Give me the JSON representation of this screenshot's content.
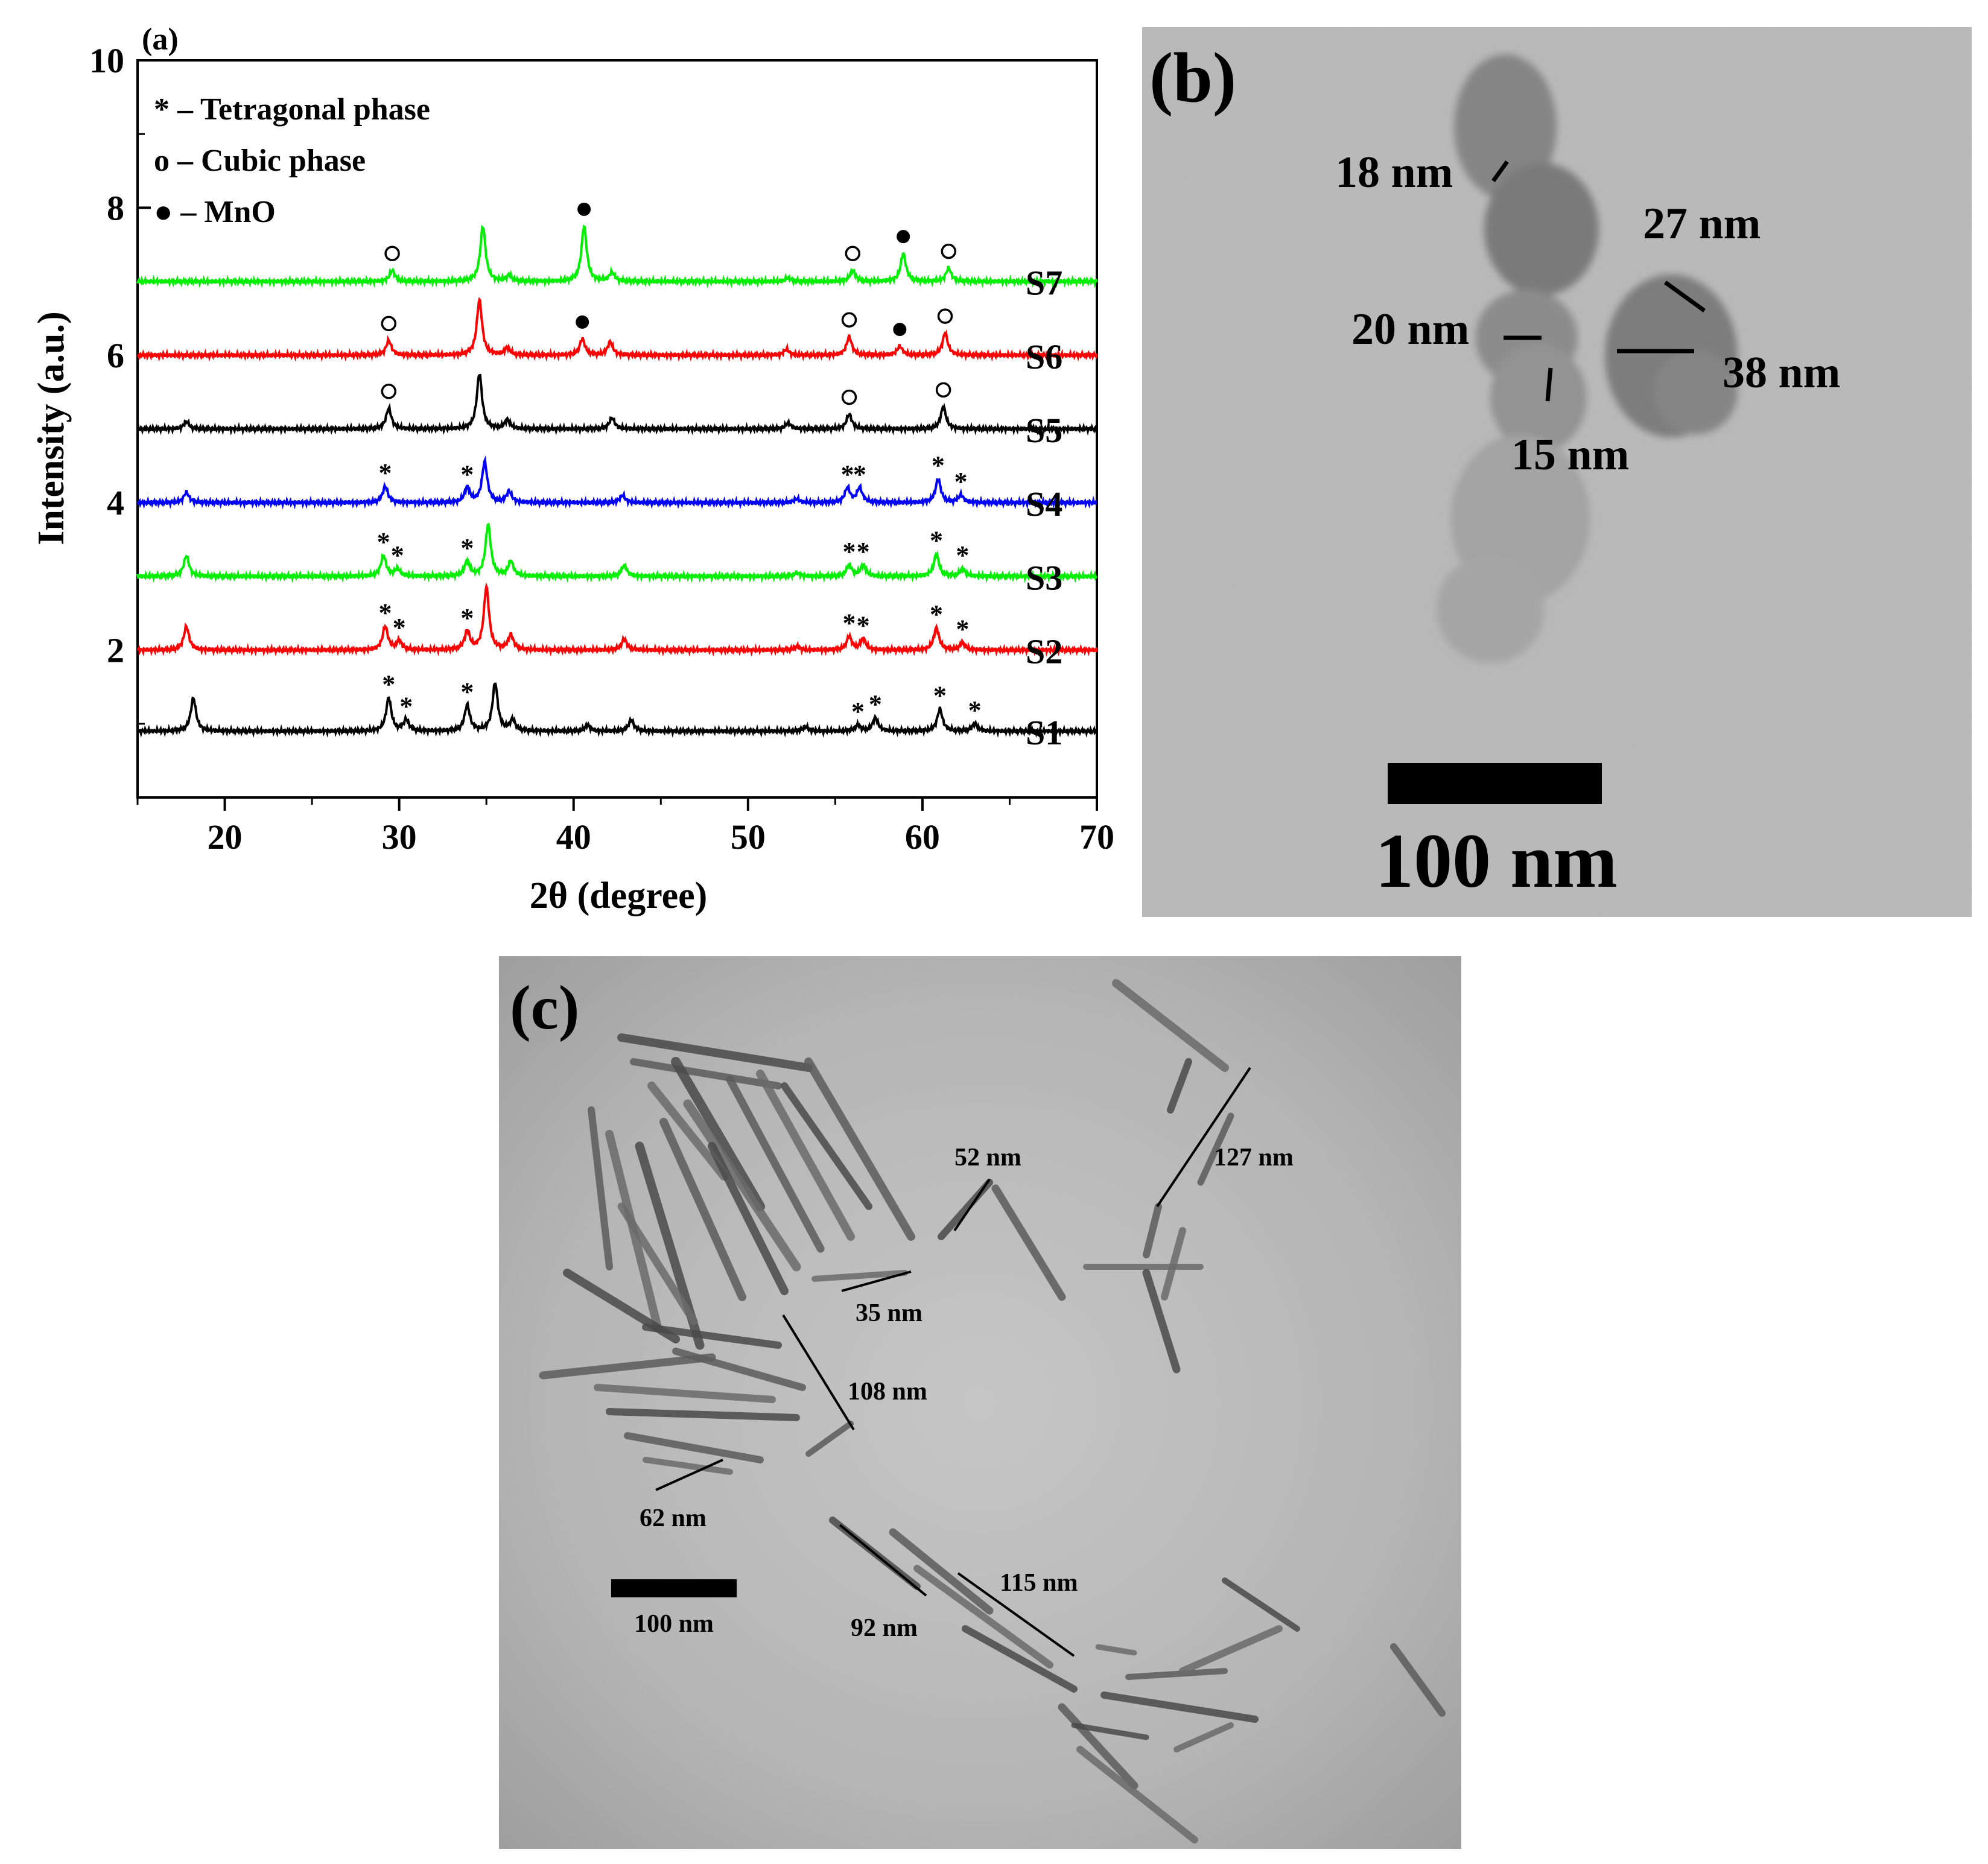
{
  "panels": {
    "a": {
      "label": "(a)",
      "chart_data": {
        "type": "line",
        "title": "",
        "xlabel": "2θ (degree)",
        "ylabel": "Intensity (a.u.)",
        "xlim": [
          15,
          70
        ],
        "ylim": [
          0,
          10
        ],
        "xticks": [
          "20",
          "30",
          "40",
          "50",
          "60",
          "70"
        ],
        "yticks": [
          "2",
          "4",
          "6",
          "8",
          "10"
        ],
        "grid": false,
        "legend_position": "top-left",
        "legend": [
          {
            "marker": "star",
            "text": "* – Tetragonal phase"
          },
          {
            "marker": "circle-open",
            "text": "o – Cubic phase"
          },
          {
            "marker": "circle-filled",
            "text": "● – MnO"
          }
        ],
        "series": [
          {
            "name": "S1",
            "color": "#000000",
            "baseline": 0.9,
            "peaks": [
              [
                18.2,
                0.45
              ],
              [
                29.4,
                0.45
              ],
              [
                30.4,
                0.15
              ],
              [
                33.9,
                0.35
              ],
              [
                35.5,
                0.65
              ],
              [
                36.5,
                0.15
              ],
              [
                40.8,
                0.08
              ],
              [
                43.3,
                0.15
              ],
              [
                53.3,
                0.06
              ],
              [
                56.3,
                0.08
              ],
              [
                57.3,
                0.18
              ],
              [
                61.0,
                0.3
              ],
              [
                63.0,
                0.1
              ]
            ],
            "markers": [
              [
                29.4,
                "*"
              ],
              [
                30.4,
                "*"
              ],
              [
                33.9,
                "*"
              ],
              [
                56.3,
                "*"
              ],
              [
                57.3,
                "*"
              ],
              [
                61.0,
                "*"
              ],
              [
                63.0,
                "*"
              ]
            ]
          },
          {
            "name": "S2",
            "color": "#ff0000",
            "baseline": 2.0,
            "peaks": [
              [
                17.8,
                0.32
              ],
              [
                29.2,
                0.32
              ],
              [
                30.0,
                0.12
              ],
              [
                33.9,
                0.25
              ],
              [
                35.0,
                0.85
              ],
              [
                36.4,
                0.2
              ],
              [
                42.9,
                0.15
              ],
              [
                52.8,
                0.05
              ],
              [
                55.8,
                0.18
              ],
              [
                56.6,
                0.15
              ],
              [
                60.8,
                0.3
              ],
              [
                62.3,
                0.1
              ]
            ],
            "markers": [
              [
                29.2,
                "*"
              ],
              [
                30.0,
                "*"
              ],
              [
                33.9,
                "*"
              ],
              [
                55.8,
                "*"
              ],
              [
                56.6,
                "*"
              ],
              [
                60.8,
                "*"
              ],
              [
                62.3,
                "*"
              ]
            ]
          },
          {
            "name": "S3",
            "color": "#00ee00",
            "baseline": 3.0,
            "peaks": [
              [
                17.8,
                0.28
              ],
              [
                29.1,
                0.28
              ],
              [
                29.9,
                0.1
              ],
              [
                33.9,
                0.2
              ],
              [
                35.1,
                0.7
              ],
              [
                36.4,
                0.2
              ],
              [
                42.9,
                0.15
              ],
              [
                52.8,
                0.05
              ],
              [
                55.8,
                0.15
              ],
              [
                56.6,
                0.15
              ],
              [
                60.8,
                0.3
              ],
              [
                62.3,
                0.1
              ]
            ],
            "markers": [
              [
                29.1,
                "*"
              ],
              [
                29.9,
                "*"
              ],
              [
                33.9,
                "*"
              ],
              [
                55.8,
                "*"
              ],
              [
                56.6,
                "*"
              ],
              [
                60.8,
                "*"
              ],
              [
                62.3,
                "*"
              ]
            ]
          },
          {
            "name": "S4",
            "color": "#0000ff",
            "baseline": 4.0,
            "peaks": [
              [
                17.8,
                0.14
              ],
              [
                29.2,
                0.22
              ],
              [
                33.9,
                0.2
              ],
              [
                34.9,
                0.55
              ],
              [
                36.3,
                0.15
              ],
              [
                42.8,
                0.1
              ],
              [
                52.8,
                0.05
              ],
              [
                55.7,
                0.2
              ],
              [
                56.4,
                0.2
              ],
              [
                60.9,
                0.32
              ],
              [
                62.2,
                0.1
              ]
            ],
            "markers": [
              [
                29.2,
                "*"
              ],
              [
                33.9,
                "*"
              ],
              [
                55.7,
                "*"
              ],
              [
                56.4,
                "*"
              ],
              [
                60.9,
                "*"
              ],
              [
                62.2,
                "*"
              ]
            ]
          },
          {
            "name": "S5",
            "color": "#000000",
            "baseline": 5.0,
            "peaks": [
              [
                17.8,
                0.1
              ],
              [
                29.4,
                0.28
              ],
              [
                34.6,
                0.75
              ],
              [
                36.2,
                0.12
              ],
              [
                42.2,
                0.15
              ],
              [
                52.3,
                0.08
              ],
              [
                55.8,
                0.2
              ],
              [
                61.2,
                0.3
              ]
            ],
            "markers": [
              [
                29.4,
                "o"
              ],
              [
                55.8,
                "o"
              ],
              [
                61.2,
                "o"
              ]
            ]
          },
          {
            "name": "S6",
            "color": "#ff0000",
            "baseline": 6.0,
            "peaks": [
              [
                29.4,
                0.2
              ],
              [
                34.6,
                0.75
              ],
              [
                36.2,
                0.1
              ],
              [
                40.5,
                0.22
              ],
              [
                42.1,
                0.18
              ],
              [
                52.2,
                0.08
              ],
              [
                55.8,
                0.25
              ],
              [
                58.7,
                0.12
              ],
              [
                61.3,
                0.3
              ]
            ],
            "markers": [
              [
                29.4,
                "o"
              ],
              [
                40.5,
                "●"
              ],
              [
                55.8,
                "o"
              ],
              [
                58.7,
                "●"
              ],
              [
                61.3,
                "o"
              ]
            ]
          },
          {
            "name": "S7",
            "color": "#00ee00",
            "baseline": 7.0,
            "peaks": [
              [
                29.6,
                0.15
              ],
              [
                34.8,
                0.75
              ],
              [
                36.3,
                0.08
              ],
              [
                40.6,
                0.75
              ],
              [
                42.2,
                0.12
              ],
              [
                52.3,
                0.05
              ],
              [
                56.0,
                0.15
              ],
              [
                58.9,
                0.38
              ],
              [
                61.5,
                0.18
              ]
            ],
            "markers": [
              [
                29.6,
                "o"
              ],
              [
                40.6,
                "●"
              ],
              [
                56.0,
                "o"
              ],
              [
                58.9,
                "●"
              ],
              [
                61.5,
                "o"
              ]
            ]
          }
        ]
      }
    },
    "b": {
      "label": "(b)",
      "annotations": [
        "18 nm",
        "27 nm",
        "20 nm",
        "38 nm",
        "15 nm"
      ],
      "scalebar": "100 nm"
    },
    "c": {
      "label": "(c)",
      "annotations": [
        "52 nm",
        "127 nm",
        "35 nm",
        "108 nm",
        "62 nm",
        "115 nm",
        "92 nm"
      ],
      "scalebar": "100 nm"
    }
  }
}
